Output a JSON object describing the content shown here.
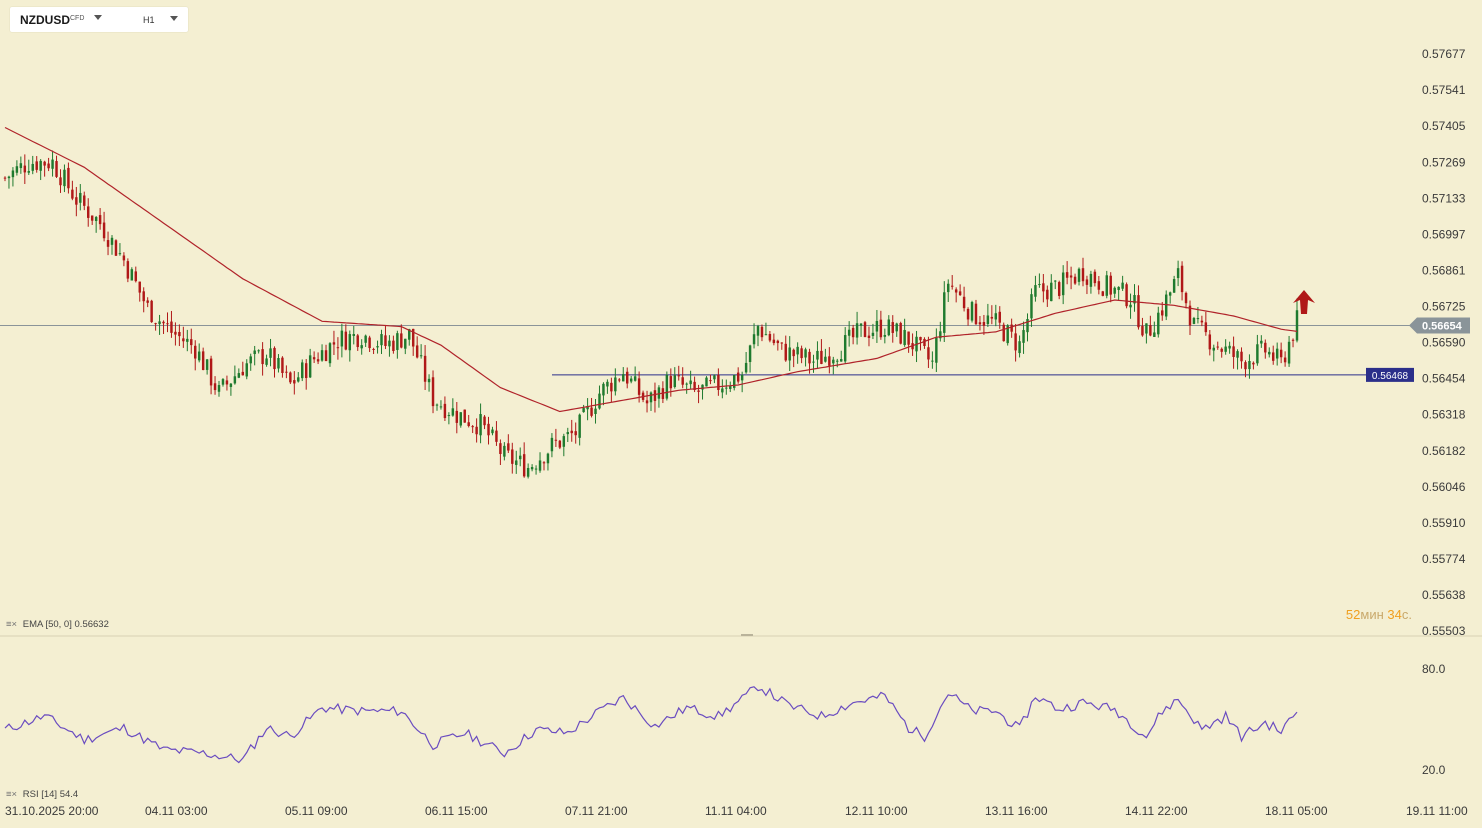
{
  "header": {
    "symbol": "NZDUSD",
    "symbol_tag": "CFD",
    "timeframe": "H1"
  },
  "indicators": {
    "ema_label": "EMA [50, 0]",
    "ema_value": "0.56632",
    "rsi_label": "RSI [14]",
    "rsi_value": "54.4"
  },
  "timer": {
    "minutes": "52",
    "min_unit": "мин",
    "seconds": "34",
    "sec_unit": "с."
  },
  "colors": {
    "background": "#f4efd2",
    "bull": "#1f7a2e",
    "bear": "#b01818",
    "ema": "#b0232a",
    "rsi": "#6a4cc0",
    "support_line": "#2b2f8a",
    "current_price_line": "#8a9499",
    "arrow": "#b01818"
  },
  "icons": {
    "indicator_menu": "bars-icon",
    "indicator_close": "close-icon",
    "signal": "up-arrow-icon"
  },
  "chart_data": [
    {
      "type": "candlestick",
      "title": "NZDUSD H1",
      "y_ticks": [
        "0.57677",
        "0.57541",
        "0.57405",
        "0.57269",
        "0.57133",
        "0.56997",
        "0.56861",
        "0.56725",
        "0.56590",
        "0.56454",
        "0.56318",
        "0.56182",
        "0.56046",
        "0.55910",
        "0.55774",
        "0.55638",
        "0.55503"
      ],
      "ylim": [
        0.55503,
        0.57677
      ],
      "x_ticks": [
        "31.10.2025  20:00",
        "04.11  03:00",
        "05.11  09:00",
        "06.11  15:00",
        "07.11  21:00",
        "11.11  04:00",
        "12.11  10:00",
        "13.11  16:00",
        "14.11  22:00",
        "18.11  05:00",
        "19.11  11:00"
      ],
      "current_price": 0.56654,
      "current_price_label": "0.56654",
      "support_level": 0.56468,
      "support_label": "0.56468",
      "signal": "buy arrow",
      "close_path": [
        {
          "i": 0,
          "v": 0.5721
        },
        {
          "i": 6,
          "v": 0.5727
        },
        {
          "i": 12,
          "v": 0.5727
        },
        {
          "i": 18,
          "v": 0.5713
        },
        {
          "i": 24,
          "v": 0.5704
        },
        {
          "i": 30,
          "v": 0.569
        },
        {
          "i": 36,
          "v": 0.5672
        },
        {
          "i": 42,
          "v": 0.5663
        },
        {
          "i": 48,
          "v": 0.5657
        },
        {
          "i": 54,
          "v": 0.564
        },
        {
          "i": 60,
          "v": 0.565
        },
        {
          "i": 66,
          "v": 0.5655
        },
        {
          "i": 72,
          "v": 0.5643
        },
        {
          "i": 78,
          "v": 0.5653
        },
        {
          "i": 84,
          "v": 0.566
        },
        {
          "i": 90,
          "v": 0.5662
        },
        {
          "i": 96,
          "v": 0.5658
        },
        {
          "i": 102,
          "v": 0.5662
        },
        {
          "i": 108,
          "v": 0.5638
        },
        {
          "i": 114,
          "v": 0.5632
        },
        {
          "i": 120,
          "v": 0.5628
        },
        {
          "i": 126,
          "v": 0.5616
        },
        {
          "i": 132,
          "v": 0.5612
        },
        {
          "i": 138,
          "v": 0.562
        },
        {
          "i": 144,
          "v": 0.5625
        },
        {
          "i": 150,
          "v": 0.564
        },
        {
          "i": 156,
          "v": 0.5648
        },
        {
          "i": 162,
          "v": 0.5636
        },
        {
          "i": 168,
          "v": 0.5645
        },
        {
          "i": 174,
          "v": 0.564
        },
        {
          "i": 180,
          "v": 0.5643
        },
        {
          "i": 186,
          "v": 0.5647
        },
        {
          "i": 190,
          "v": 0.5665
        },
        {
          "i": 196,
          "v": 0.5656
        },
        {
          "i": 204,
          "v": 0.5652
        },
        {
          "i": 210,
          "v": 0.5656
        },
        {
          "i": 216,
          "v": 0.5663
        },
        {
          "i": 222,
          "v": 0.5665
        },
        {
          "i": 228,
          "v": 0.566
        },
        {
          "i": 234,
          "v": 0.5651
        },
        {
          "i": 238,
          "v": 0.5682
        },
        {
          "i": 244,
          "v": 0.567
        },
        {
          "i": 250,
          "v": 0.5666
        },
        {
          "i": 256,
          "v": 0.5658
        },
        {
          "i": 260,
          "v": 0.5678
        },
        {
          "i": 266,
          "v": 0.568
        },
        {
          "i": 272,
          "v": 0.5686
        },
        {
          "i": 278,
          "v": 0.568
        },
        {
          "i": 284,
          "v": 0.5676
        },
        {
          "i": 288,
          "v": 0.5662
        },
        {
          "i": 292,
          "v": 0.5672
        },
        {
          "i": 296,
          "v": 0.5684
        },
        {
          "i": 300,
          "v": 0.5665
        },
        {
          "i": 306,
          "v": 0.5658
        },
        {
          "i": 312,
          "v": 0.5652
        },
        {
          "i": 318,
          "v": 0.5656
        },
        {
          "i": 322,
          "v": 0.5651
        },
        {
          "i": 326,
          "v": 0.5667
        }
      ],
      "ema_path": [
        {
          "i": 0,
          "v": 0.574
        },
        {
          "i": 20,
          "v": 0.5725
        },
        {
          "i": 40,
          "v": 0.5704
        },
        {
          "i": 60,
          "v": 0.5683
        },
        {
          "i": 80,
          "v": 0.5667
        },
        {
          "i": 100,
          "v": 0.5665
        },
        {
          "i": 110,
          "v": 0.5658
        },
        {
          "i": 125,
          "v": 0.5642
        },
        {
          "i": 140,
          "v": 0.5633
        },
        {
          "i": 155,
          "v": 0.5637
        },
        {
          "i": 170,
          "v": 0.5641
        },
        {
          "i": 185,
          "v": 0.5643
        },
        {
          "i": 200,
          "v": 0.5648
        },
        {
          "i": 220,
          "v": 0.5653
        },
        {
          "i": 235,
          "v": 0.5661
        },
        {
          "i": 250,
          "v": 0.5663
        },
        {
          "i": 265,
          "v": 0.567
        },
        {
          "i": 280,
          "v": 0.5675
        },
        {
          "i": 295,
          "v": 0.5673
        },
        {
          "i": 310,
          "v": 0.5669
        },
        {
          "i": 322,
          "v": 0.5664
        },
        {
          "i": 326,
          "v": 0.56632
        }
      ]
    },
    {
      "type": "line",
      "title": "RSI [14]",
      "y_ticks": [
        "80.0",
        "20.0"
      ],
      "ylim": [
        10,
        90
      ],
      "current_value": 54.4,
      "rsi_path": [
        {
          "i": 0,
          "v": 44
        },
        {
          "i": 10,
          "v": 52
        },
        {
          "i": 20,
          "v": 38
        },
        {
          "i": 30,
          "v": 45
        },
        {
          "i": 40,
          "v": 32
        },
        {
          "i": 50,
          "v": 30
        },
        {
          "i": 60,
          "v": 26
        },
        {
          "i": 66,
          "v": 45
        },
        {
          "i": 72,
          "v": 40
        },
        {
          "i": 80,
          "v": 57
        },
        {
          "i": 90,
          "v": 55
        },
        {
          "i": 100,
          "v": 55
        },
        {
          "i": 108,
          "v": 35
        },
        {
          "i": 116,
          "v": 42
        },
        {
          "i": 126,
          "v": 30
        },
        {
          "i": 134,
          "v": 44
        },
        {
          "i": 142,
          "v": 42
        },
        {
          "i": 150,
          "v": 55
        },
        {
          "i": 156,
          "v": 63
        },
        {
          "i": 164,
          "v": 46
        },
        {
          "i": 172,
          "v": 57
        },
        {
          "i": 180,
          "v": 52
        },
        {
          "i": 186,
          "v": 62
        },
        {
          "i": 190,
          "v": 70
        },
        {
          "i": 198,
          "v": 58
        },
        {
          "i": 206,
          "v": 52
        },
        {
          "i": 214,
          "v": 60
        },
        {
          "i": 222,
          "v": 64
        },
        {
          "i": 228,
          "v": 45
        },
        {
          "i": 232,
          "v": 40
        },
        {
          "i": 238,
          "v": 66
        },
        {
          "i": 244,
          "v": 55
        },
        {
          "i": 250,
          "v": 55
        },
        {
          "i": 256,
          "v": 44
        },
        {
          "i": 260,
          "v": 64
        },
        {
          "i": 266,
          "v": 56
        },
        {
          "i": 272,
          "v": 60
        },
        {
          "i": 280,
          "v": 56
        },
        {
          "i": 288,
          "v": 40
        },
        {
          "i": 292,
          "v": 55
        },
        {
          "i": 296,
          "v": 62
        },
        {
          "i": 302,
          "v": 44
        },
        {
          "i": 308,
          "v": 52
        },
        {
          "i": 312,
          "v": 40
        },
        {
          "i": 318,
          "v": 48
        },
        {
          "i": 322,
          "v": 43
        },
        {
          "i": 326,
          "v": 54.4
        }
      ]
    }
  ]
}
